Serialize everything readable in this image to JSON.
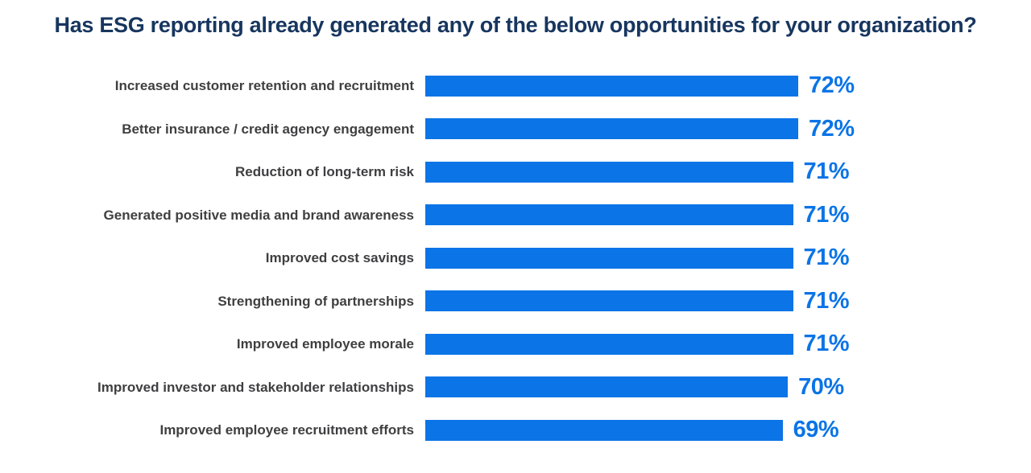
{
  "title": "Has ESG reporting already generated any of the below opportunities for your organization?",
  "colors": {
    "background": "#ffffff",
    "title": "#17365f",
    "category_label": "#3f3f41",
    "bar": "#0b74e6",
    "value_label": "#0b74e6"
  },
  "chart_data": {
    "type": "bar",
    "orientation": "horizontal",
    "title": "Has ESG reporting already generated any of the below opportunities for your organization?",
    "categories": [
      "Increased customer retention and recruitment",
      "Better insurance / credit agency engagement",
      "Reduction of long-term risk",
      "Generated positive media and brand awareness",
      "Improved cost savings",
      "Strengthening of partnerships",
      "Improved employee morale",
      "Improved investor and stakeholder relationships",
      "Improved employee recruitment efforts"
    ],
    "values": [
      72,
      72,
      71,
      71,
      71,
      71,
      71,
      70,
      69
    ],
    "value_labels": [
      "72%",
      "72%",
      "71%",
      "71%",
      "71%",
      "71%",
      "71%",
      "70%",
      "69%"
    ],
    "xlabel": "",
    "ylabel": "",
    "xlim": [
      0,
      100
    ],
    "grid": false,
    "legend": false,
    "value_labels_position": "outside-end",
    "sort_order": "descending"
  }
}
